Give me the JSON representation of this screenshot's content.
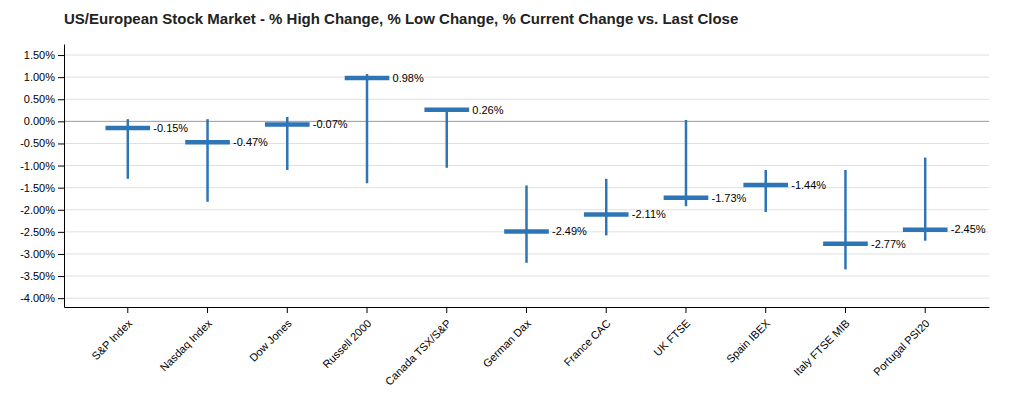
{
  "chart_data": {
    "type": "range",
    "title": "US/European Stock Market - % High Change, % Low Change, % Current Change vs. Last Close",
    "categories": [
      "S&P Index",
      "Nasdaq Index",
      "Dow Jones",
      "Russell 2000",
      "Canada TSX/S&P",
      "German Dax",
      "France CAC",
      "UK FTSE",
      "Spain IBEX",
      "Italy FTSE MIB",
      "Portugal PSI20"
    ],
    "values": [
      -0.15,
      -0.47,
      -0.07,
      0.98,
      0.26,
      -2.49,
      -2.11,
      -1.73,
      -1.44,
      -2.77,
      -2.45
    ],
    "value_labels": [
      "-0.15%",
      "-0.47%",
      "-0.07%",
      "0.98%",
      "0.26%",
      "-2.49%",
      "-2.11%",
      "-1.73%",
      "-1.44%",
      "-2.77%",
      "-2.45%"
    ],
    "high": [
      0.05,
      0.05,
      0.1,
      1.07,
      0.3,
      -1.45,
      -1.3,
      0.03,
      -1.1,
      -1.1,
      -0.82
    ],
    "low": [
      -1.3,
      -1.82,
      -1.1,
      -1.4,
      -1.05,
      -3.2,
      -2.58,
      -1.92,
      -2.05,
      -3.35,
      -2.7
    ],
    "color": "#2E75B6",
    "ylim": [
      -4.2,
      1.75
    ],
    "yticks": [
      {
        "value": 1.5,
        "label": "1.50%"
      },
      {
        "value": 1.0,
        "label": "1.00%"
      },
      {
        "value": 0.5,
        "label": "0.50%"
      },
      {
        "value": 0.0,
        "label": "0.00%"
      },
      {
        "value": -0.5,
        "label": "-0.50%"
      },
      {
        "value": -1.0,
        "label": "-1.00%"
      },
      {
        "value": -1.5,
        "label": "-1.50%"
      },
      {
        "value": -2.0,
        "label": "-2.00%"
      },
      {
        "value": -2.5,
        "label": "-2.50%"
      },
      {
        "value": -3.0,
        "label": "-3.00%"
      },
      {
        "value": -3.5,
        "label": "-3.50%"
      },
      {
        "value": -4.0,
        "label": "-4.00%"
      }
    ],
    "grid": true,
    "data_labels": true
  }
}
